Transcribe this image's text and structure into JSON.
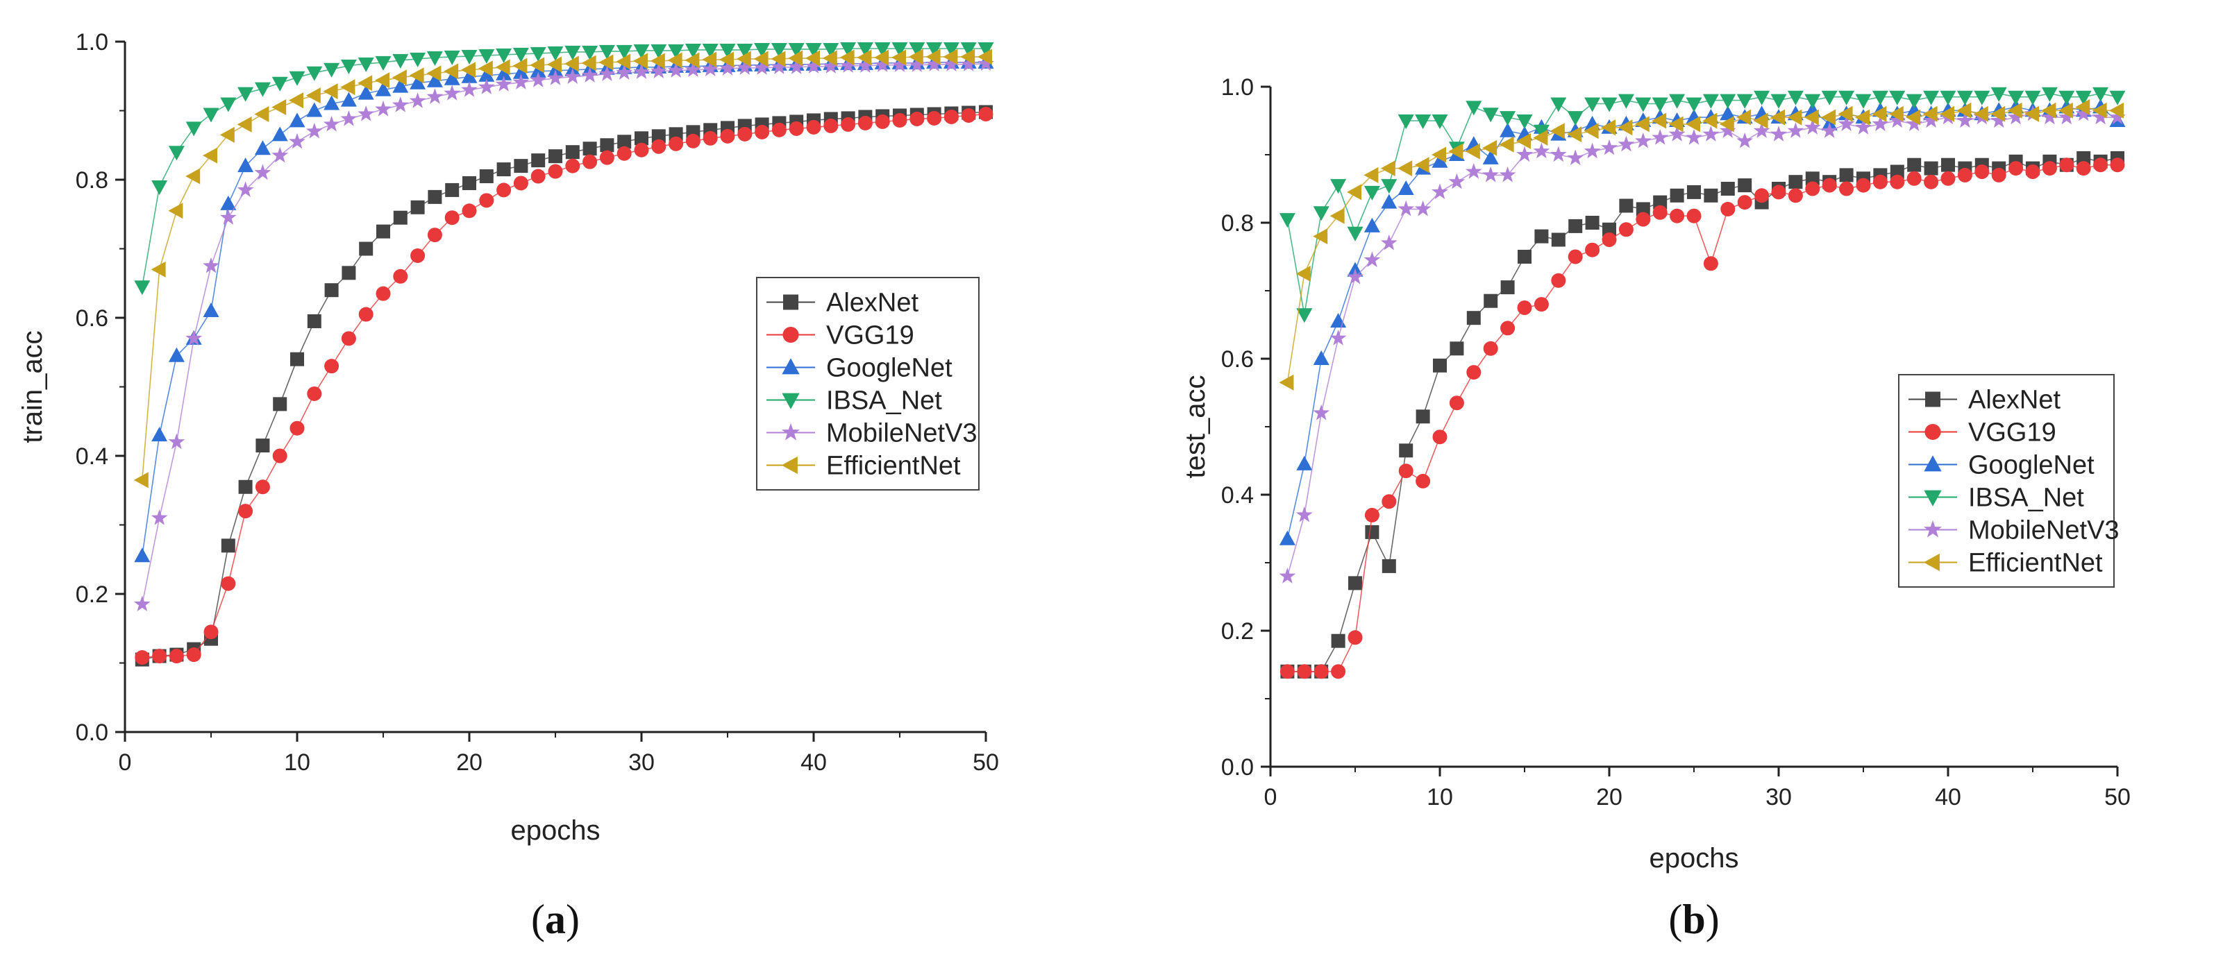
{
  "chart_data": [
    {
      "type": "line",
      "ylabel": "train_acc",
      "xlabel": "epochs",
      "caption": "a",
      "xlim": [
        0,
        50
      ],
      "ylim": [
        0,
        1.0
      ],
      "xticks": [
        "0",
        "10",
        "20",
        "30",
        "40",
        "50"
      ],
      "yticks": [
        "0.0",
        "0.2",
        "0.4",
        "0.6",
        "0.8",
        "1.0"
      ],
      "legend_position": "center-right",
      "series": [
        {
          "name": "AlexNet",
          "color": "#444444",
          "marker": "square",
          "values": [
            0.105,
            0.11,
            0.112,
            0.12,
            0.135,
            0.27,
            0.355,
            0.415,
            0.475,
            0.54,
            0.595,
            0.64,
            0.665,
            0.7,
            0.725,
            0.745,
            0.76,
            0.775,
            0.785,
            0.795,
            0.805,
            0.815,
            0.82,
            0.828,
            0.834,
            0.84,
            0.845,
            0.85,
            0.855,
            0.86,
            0.863,
            0.866,
            0.869,
            0.872,
            0.875,
            0.878,
            0.88,
            0.882,
            0.884,
            0.886,
            0.888,
            0.889,
            0.891,
            0.892,
            0.893,
            0.894,
            0.895,
            0.896,
            0.897,
            0.898
          ]
        },
        {
          "name": "VGG19",
          "color": "#e8383a",
          "marker": "circle",
          "values": [
            0.108,
            0.11,
            0.11,
            0.112,
            0.145,
            0.215,
            0.32,
            0.355,
            0.4,
            0.44,
            0.49,
            0.53,
            0.57,
            0.605,
            0.635,
            0.66,
            0.69,
            0.72,
            0.745,
            0.755,
            0.77,
            0.785,
            0.795,
            0.805,
            0.812,
            0.82,
            0.826,
            0.832,
            0.838,
            0.843,
            0.848,
            0.852,
            0.856,
            0.86,
            0.863,
            0.866,
            0.869,
            0.872,
            0.874,
            0.876,
            0.878,
            0.88,
            0.882,
            0.884,
            0.886,
            0.888,
            0.889,
            0.891,
            0.893,
            0.895
          ]
        },
        {
          "name": "GoogleNet",
          "color": "#2e6fd6",
          "marker": "triangle-up",
          "values": [
            0.255,
            0.43,
            0.545,
            0.57,
            0.61,
            0.765,
            0.82,
            0.845,
            0.865,
            0.885,
            0.9,
            0.91,
            0.915,
            0.925,
            0.93,
            0.935,
            0.94,
            0.943,
            0.946,
            0.949,
            0.951,
            0.953,
            0.955,
            0.957,
            0.958,
            0.959,
            0.96,
            0.961,
            0.962,
            0.963,
            0.963,
            0.964,
            0.964,
            0.965,
            0.965,
            0.966,
            0.966,
            0.967,
            0.967,
            0.967,
            0.968,
            0.968,
            0.968,
            0.969,
            0.969,
            0.969,
            0.97,
            0.97,
            0.97,
            0.97
          ]
        },
        {
          "name": "IBSA_Net",
          "color": "#22a86a",
          "marker": "triangle-down",
          "values": [
            0.645,
            0.79,
            0.84,
            0.875,
            0.895,
            0.91,
            0.925,
            0.932,
            0.94,
            0.948,
            0.955,
            0.96,
            0.965,
            0.968,
            0.97,
            0.973,
            0.975,
            0.977,
            0.978,
            0.979,
            0.98,
            0.981,
            0.982,
            0.983,
            0.984,
            0.985,
            0.985,
            0.986,
            0.986,
            0.987,
            0.987,
            0.987,
            0.988,
            0.988,
            0.988,
            0.988,
            0.989,
            0.989,
            0.989,
            0.989,
            0.989,
            0.99,
            0.99,
            0.99,
            0.99,
            0.99,
            0.99,
            0.99,
            0.99,
            0.99
          ]
        },
        {
          "name": "MobileNetV3",
          "color": "#b07fd8",
          "marker": "star",
          "values": [
            0.185,
            0.31,
            0.42,
            0.57,
            0.675,
            0.745,
            0.785,
            0.81,
            0.835,
            0.855,
            0.87,
            0.88,
            0.888,
            0.895,
            0.902,
            0.908,
            0.914,
            0.92,
            0.925,
            0.93,
            0.934,
            0.938,
            0.941,
            0.944,
            0.947,
            0.949,
            0.951,
            0.953,
            0.955,
            0.956,
            0.957,
            0.958,
            0.959,
            0.96,
            0.961,
            0.962,
            0.962,
            0.963,
            0.963,
            0.964,
            0.964,
            0.965,
            0.965,
            0.966,
            0.966,
            0.966,
            0.967,
            0.967,
            0.967,
            0.968
          ]
        },
        {
          "name": "EfficientNet",
          "color": "#c8a21c",
          "marker": "triangle-left",
          "values": [
            0.365,
            0.67,
            0.755,
            0.805,
            0.835,
            0.865,
            0.88,
            0.895,
            0.905,
            0.915,
            0.922,
            0.928,
            0.934,
            0.94,
            0.944,
            0.948,
            0.951,
            0.954,
            0.957,
            0.959,
            0.961,
            0.963,
            0.965,
            0.966,
            0.967,
            0.968,
            0.969,
            0.97,
            0.971,
            0.972,
            0.972,
            0.973,
            0.973,
            0.974,
            0.974,
            0.975,
            0.975,
            0.975,
            0.976,
            0.976,
            0.976,
            0.977,
            0.977,
            0.977,
            0.977,
            0.978,
            0.978,
            0.978,
            0.978,
            0.978
          ]
        }
      ]
    },
    {
      "type": "line",
      "ylabel": "test_acc",
      "xlabel": "epochs",
      "caption": "b",
      "xlim": [
        0,
        50
      ],
      "ylim": [
        0,
        1.0
      ],
      "xticks": [
        "0",
        "10",
        "20",
        "30",
        "40",
        "50"
      ],
      "yticks": [
        "0.0",
        "0.2",
        "0.4",
        "0.6",
        "0.8",
        "1.0"
      ],
      "legend_position": "center-right",
      "series": [
        {
          "name": "AlexNet",
          "color": "#444444",
          "marker": "square",
          "values": [
            0.14,
            0.14,
            0.14,
            0.185,
            0.27,
            0.345,
            0.295,
            0.465,
            0.515,
            0.59,
            0.615,
            0.66,
            0.685,
            0.705,
            0.75,
            0.78,
            0.775,
            0.795,
            0.8,
            0.79,
            0.825,
            0.82,
            0.83,
            0.84,
            0.845,
            0.84,
            0.85,
            0.855,
            0.83,
            0.85,
            0.86,
            0.865,
            0.86,
            0.87,
            0.865,
            0.87,
            0.875,
            0.885,
            0.88,
            0.885,
            0.88,
            0.885,
            0.88,
            0.89,
            0.88,
            0.89,
            0.885,
            0.895,
            0.89,
            0.895
          ]
        },
        {
          "name": "VGG19",
          "color": "#e8383a",
          "marker": "circle",
          "values": [
            0.14,
            0.14,
            0.14,
            0.14,
            0.19,
            0.37,
            0.39,
            0.435,
            0.42,
            0.485,
            0.535,
            0.58,
            0.615,
            0.645,
            0.675,
            0.68,
            0.715,
            0.75,
            0.76,
            0.775,
            0.79,
            0.805,
            0.815,
            0.81,
            0.81,
            0.74,
            0.82,
            0.83,
            0.84,
            0.845,
            0.84,
            0.85,
            0.855,
            0.85,
            0.855,
            0.86,
            0.86,
            0.865,
            0.86,
            0.865,
            0.87,
            0.875,
            0.87,
            0.88,
            0.875,
            0.88,
            0.885,
            0.88,
            0.885,
            0.885
          ]
        },
        {
          "name": "GoogleNet",
          "color": "#2e6fd6",
          "marker": "triangle-up",
          "values": [
            0.335,
            0.445,
            0.6,
            0.655,
            0.73,
            0.795,
            0.83,
            0.85,
            0.88,
            0.89,
            0.9,
            0.915,
            0.895,
            0.935,
            0.93,
            0.94,
            0.93,
            0.935,
            0.945,
            0.94,
            0.945,
            0.95,
            0.955,
            0.95,
            0.955,
            0.955,
            0.96,
            0.955,
            0.96,
            0.955,
            0.96,
            0.965,
            0.945,
            0.96,
            0.955,
            0.965,
            0.96,
            0.965,
            0.96,
            0.965,
            0.965,
            0.96,
            0.965,
            0.97,
            0.965,
            0.965,
            0.97,
            0.965,
            0.97,
            0.95
          ]
        },
        {
          "name": "IBSA_Net",
          "color": "#22a86a",
          "marker": "triangle-down",
          "values": [
            0.805,
            0.665,
            0.815,
            0.855,
            0.785,
            0.845,
            0.855,
            0.95,
            0.95,
            0.95,
            0.91,
            0.97,
            0.96,
            0.955,
            0.95,
            0.935,
            0.975,
            0.955,
            0.975,
            0.975,
            0.98,
            0.975,
            0.975,
            0.98,
            0.975,
            0.98,
            0.98,
            0.98,
            0.985,
            0.98,
            0.985,
            0.98,
            0.985,
            0.985,
            0.98,
            0.985,
            0.985,
            0.98,
            0.985,
            0.985,
            0.985,
            0.985,
            0.99,
            0.985,
            0.985,
            0.99,
            0.985,
            0.985,
            0.99,
            0.985
          ]
        },
        {
          "name": "MobileNetV3",
          "color": "#b07fd8",
          "marker": "star",
          "values": [
            0.28,
            0.37,
            0.52,
            0.63,
            0.72,
            0.745,
            0.77,
            0.82,
            0.82,
            0.845,
            0.86,
            0.875,
            0.87,
            0.87,
            0.9,
            0.905,
            0.9,
            0.895,
            0.905,
            0.91,
            0.915,
            0.92,
            0.925,
            0.93,
            0.925,
            0.93,
            0.935,
            0.92,
            0.935,
            0.93,
            0.935,
            0.94,
            0.935,
            0.945,
            0.94,
            0.945,
            0.95,
            0.945,
            0.95,
            0.955,
            0.95,
            0.955,
            0.95,
            0.955,
            0.96,
            0.955,
            0.955,
            0.96,
            0.955,
            0.955
          ]
        },
        {
          "name": "EfficientNet",
          "color": "#c8a21c",
          "marker": "triangle-left",
          "values": [
            0.565,
            0.725,
            0.78,
            0.81,
            0.845,
            0.87,
            0.88,
            0.88,
            0.885,
            0.9,
            0.905,
            0.905,
            0.91,
            0.915,
            0.92,
            0.925,
            0.935,
            0.93,
            0.935,
            0.94,
            0.94,
            0.945,
            0.95,
            0.945,
            0.945,
            0.95,
            0.945,
            0.955,
            0.95,
            0.955,
            0.955,
            0.955,
            0.955,
            0.96,
            0.955,
            0.96,
            0.96,
            0.955,
            0.96,
            0.96,
            0.965,
            0.96,
            0.96,
            0.965,
            0.96,
            0.965,
            0.965,
            0.97,
            0.965,
            0.965
          ]
        }
      ]
    }
  ]
}
